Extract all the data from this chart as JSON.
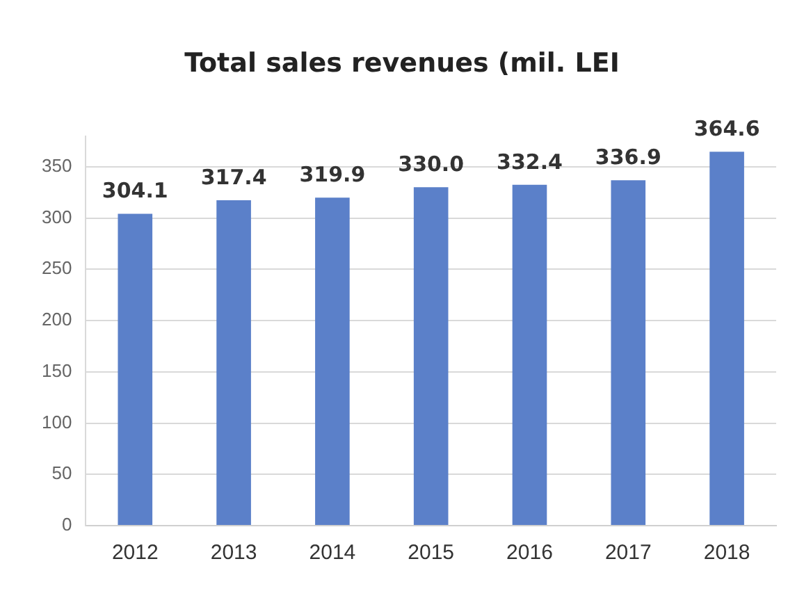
{
  "chart_data": {
    "type": "bar",
    "title": "Total sales revenues (mil. LEI",
    "categories": [
      "2012",
      "2013",
      "2014",
      "2015",
      "2016",
      "2017",
      "2018"
    ],
    "values": [
      304.1,
      317.4,
      319.9,
      330.0,
      332.4,
      336.9,
      364.6
    ],
    "value_labels": [
      "304.1",
      "317.4",
      "319.9",
      "330.0",
      "332.4",
      "336.9",
      "364.6"
    ],
    "color": "#5b80c9",
    "ylim": [
      0,
      380
    ],
    "yticks": [
      0,
      50,
      100,
      150,
      200,
      250,
      300,
      350
    ],
    "grid": "y",
    "legend": false
  }
}
